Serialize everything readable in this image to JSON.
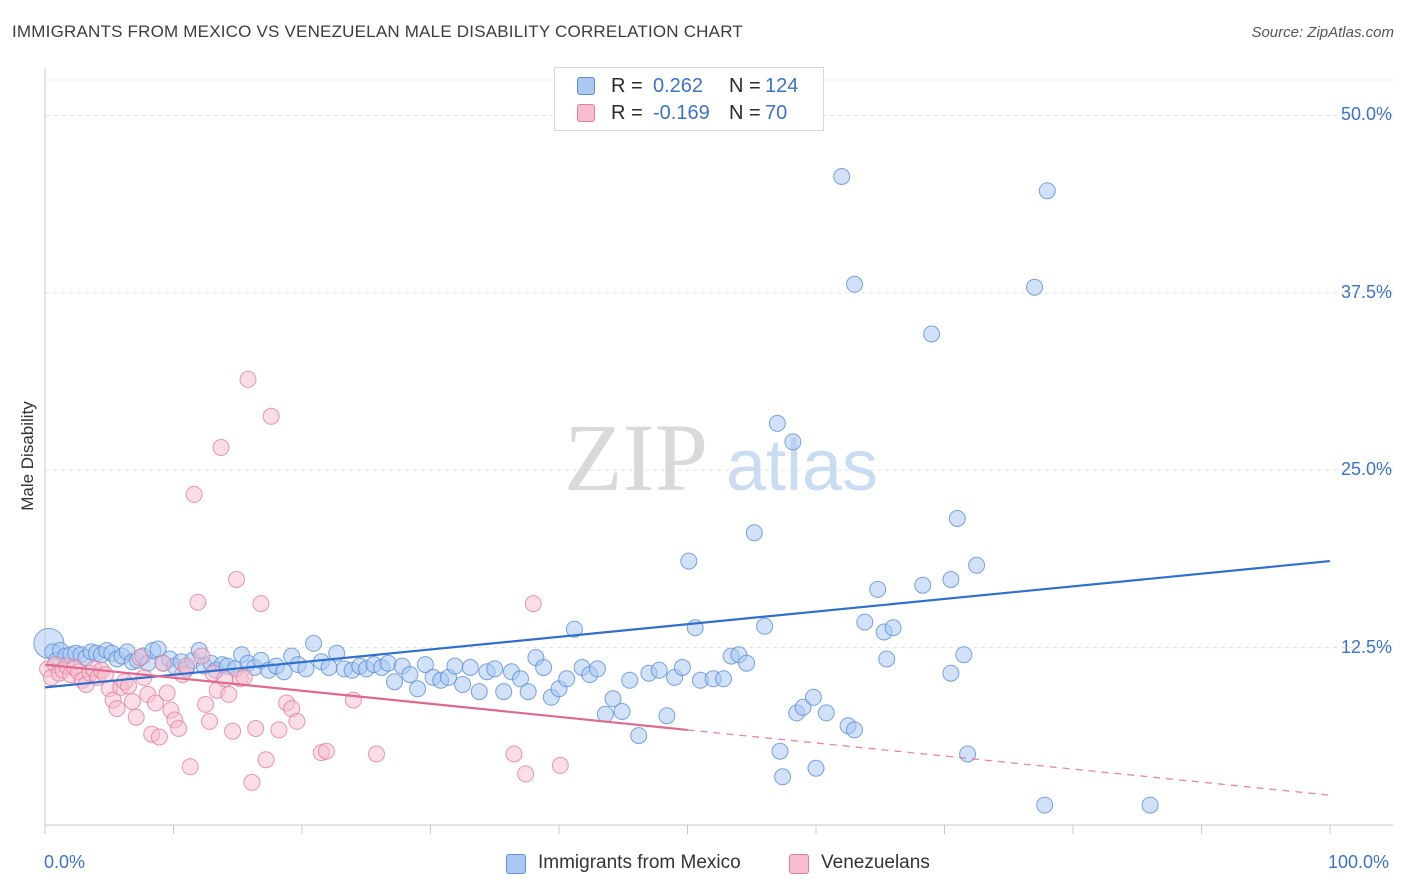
{
  "title": "IMMIGRANTS FROM MEXICO VS VENEZUELAN MALE DISABILITY CORRELATION CHART",
  "source": "Source: ZipAtlas.com",
  "watermark": {
    "zip": "ZIP",
    "atlas": "atlas"
  },
  "legend": {
    "rows": [
      {
        "r_label": "R =",
        "r_value": "0.262",
        "n_label": "N =",
        "n_value": "124",
        "color": "#a9c8f2",
        "stroke": "#5b8fd6"
      },
      {
        "r_label": "R =",
        "r_value": "-0.169",
        "n_label": "N =",
        "n_value": "70",
        "color": "#f7bccd",
        "stroke": "#e07f9d"
      }
    ]
  },
  "bottom_legend": [
    {
      "label": "Immigrants from Mexico",
      "color": "#a9c8f2",
      "stroke": "#5b8fd6"
    },
    {
      "label": "Venezuelans",
      "color": "#f7bccd",
      "stroke": "#e07f9d"
    }
  ],
  "chart_data": {
    "type": "scatter",
    "title": "IMMIGRANTS FROM MEXICO VS VENEZUELAN MALE DISABILITY CORRELATION CHART",
    "xlabel": "",
    "ylabel": "Male Disability",
    "xlim": [
      0,
      100
    ],
    "ylim": [
      0,
      52.5
    ],
    "x_ticks": [
      "0.0%",
      "100.0%"
    ],
    "y_ticks": [
      {
        "value": 12.5,
        "label": "12.5%"
      },
      {
        "value": 25.0,
        "label": "25.0%"
      },
      {
        "value": 37.5,
        "label": "37.5%"
      },
      {
        "value": 50.0,
        "label": "50.0%"
      }
    ],
    "grid": true,
    "series": [
      {
        "name": "Immigrants from Mexico",
        "color": "#a9c8f2",
        "stroke": "#5b8fd6",
        "trend": {
          "x0": 0,
          "y0": 9.7,
          "x1": 100,
          "y1": 18.6,
          "color": "#2f6fd0",
          "dashed_from": null
        },
        "points": [
          [
            0.3,
            12.8
          ],
          [
            0.6,
            12.2
          ],
          [
            0.9,
            11.6
          ],
          [
            1.2,
            12.3
          ],
          [
            1.6,
            11.9
          ],
          [
            2.0,
            12.0
          ],
          [
            2.4,
            12.1
          ],
          [
            2.8,
            12.0
          ],
          [
            3.2,
            11.8
          ],
          [
            3.6,
            12.2
          ],
          [
            4.0,
            12.1
          ],
          [
            4.4,
            12.0
          ],
          [
            4.8,
            12.3
          ],
          [
            5.2,
            12.1
          ],
          [
            5.6,
            11.7
          ],
          [
            6.0,
            11.9
          ],
          [
            6.4,
            12.2
          ],
          [
            6.8,
            11.5
          ],
          [
            7.2,
            11.6
          ],
          [
            7.6,
            11.9
          ],
          [
            8.0,
            11.4
          ],
          [
            8.4,
            12.3
          ],
          [
            8.8,
            12.4
          ],
          [
            9.2,
            11.4
          ],
          [
            9.7,
            11.7
          ],
          [
            10.1,
            11.2
          ],
          [
            10.6,
            11.5
          ],
          [
            11.0,
            11.0
          ],
          [
            11.5,
            11.6
          ],
          [
            12.0,
            12.3
          ],
          [
            12.4,
            11.2
          ],
          [
            12.9,
            11.4
          ],
          [
            13.3,
            10.9
          ],
          [
            13.8,
            11.3
          ],
          [
            14.2,
            11.2
          ],
          [
            14.8,
            11.0
          ],
          [
            15.3,
            12.0
          ],
          [
            15.8,
            11.4
          ],
          [
            16.3,
            11.1
          ],
          [
            16.8,
            11.6
          ],
          [
            17.4,
            10.9
          ],
          [
            18.0,
            11.2
          ],
          [
            18.6,
            10.8
          ],
          [
            19.2,
            11.9
          ],
          [
            19.7,
            11.3
          ],
          [
            20.3,
            11.0
          ],
          [
            20.9,
            12.8
          ],
          [
            21.5,
            11.5
          ],
          [
            22.1,
            11.1
          ],
          [
            22.7,
            12.1
          ],
          [
            23.3,
            11.0
          ],
          [
            23.9,
            10.9
          ],
          [
            24.5,
            11.2
          ],
          [
            25.0,
            11.0
          ],
          [
            25.6,
            11.3
          ],
          [
            26.2,
            11.1
          ],
          [
            26.7,
            11.4
          ],
          [
            27.2,
            10.1
          ],
          [
            27.8,
            11.2
          ],
          [
            28.4,
            10.6
          ],
          [
            29.0,
            9.6
          ],
          [
            29.6,
            11.3
          ],
          [
            30.2,
            10.4
          ],
          [
            30.8,
            10.2
          ],
          [
            31.4,
            10.4
          ],
          [
            31.9,
            11.2
          ],
          [
            32.5,
            9.9
          ],
          [
            33.1,
            11.1
          ],
          [
            33.8,
            9.4
          ],
          [
            34.4,
            10.8
          ],
          [
            35.0,
            11.0
          ],
          [
            35.7,
            9.4
          ],
          [
            36.3,
            10.8
          ],
          [
            37.0,
            10.3
          ],
          [
            37.6,
            9.4
          ],
          [
            38.2,
            11.8
          ],
          [
            38.8,
            11.1
          ],
          [
            39.4,
            9.0
          ],
          [
            40.0,
            9.6
          ],
          [
            40.6,
            10.3
          ],
          [
            41.2,
            13.8
          ],
          [
            41.8,
            11.1
          ],
          [
            42.4,
            10.6
          ],
          [
            43.0,
            11.0
          ],
          [
            43.6,
            7.8
          ],
          [
            44.2,
            8.9
          ],
          [
            44.9,
            8.0
          ],
          [
            45.5,
            10.2
          ],
          [
            46.2,
            6.3
          ],
          [
            47.0,
            10.7
          ],
          [
            47.8,
            10.9
          ],
          [
            48.4,
            7.7
          ],
          [
            49.0,
            10.4
          ],
          [
            49.6,
            11.1
          ],
          [
            50.1,
            18.6
          ],
          [
            50.6,
            13.9
          ],
          [
            51.0,
            10.2
          ],
          [
            52.0,
            10.3
          ],
          [
            52.8,
            10.3
          ],
          [
            53.4,
            11.9
          ],
          [
            54.0,
            12.0
          ],
          [
            54.6,
            11.4
          ],
          [
            55.2,
            20.6
          ],
          [
            56.0,
            14.0
          ],
          [
            57.2,
            5.2
          ],
          [
            57.4,
            3.4
          ],
          [
            58.5,
            7.9
          ],
          [
            59.0,
            8.3
          ],
          [
            59.8,
            9.0
          ],
          [
            60.0,
            4.0
          ],
          [
            60.8,
            7.9
          ],
          [
            62.5,
            7.0
          ],
          [
            63.0,
            6.7
          ],
          [
            63.8,
            14.3
          ],
          [
            64.8,
            16.6
          ],
          [
            65.3,
            13.6
          ],
          [
            66.0,
            13.9
          ],
          [
            68.3,
            16.9
          ],
          [
            70.5,
            17.3
          ],
          [
            71.0,
            21.6
          ],
          [
            72.5,
            18.3
          ],
          [
            62.0,
            45.7
          ],
          [
            57.0,
            28.3
          ],
          [
            58.2,
            27.0
          ],
          [
            63.0,
            38.1
          ],
          [
            69.0,
            34.6
          ],
          [
            77.0,
            37.9
          ],
          [
            70.5,
            10.7
          ],
          [
            78.0,
            44.7
          ],
          [
            71.5,
            12.0
          ],
          [
            77.8,
            1.4
          ],
          [
            86.0,
            1.4
          ],
          [
            71.8,
            5.0
          ],
          [
            65.5,
            11.7
          ]
        ]
      },
      {
        "name": "Venezuelans",
        "color": "#f7bccd",
        "stroke": "#e07f9d",
        "trend": {
          "x0": 0,
          "y0": 11.3,
          "x1": 100,
          "y1": 2.1,
          "color": "#e0688f",
          "dashed_from": 50
        },
        "points": [
          [
            0.2,
            11.0
          ],
          [
            0.5,
            10.4
          ],
          [
            0.8,
            11.3
          ],
          [
            1.1,
            10.7
          ],
          [
            1.4,
            10.9
          ],
          [
            1.7,
            11.2
          ],
          [
            2.0,
            10.6
          ],
          [
            2.3,
            11.1
          ],
          [
            2.6,
            10.8
          ],
          [
            2.9,
            10.2
          ],
          [
            3.2,
            9.9
          ],
          [
            3.5,
            10.7
          ],
          [
            3.8,
            11.0
          ],
          [
            4.1,
            10.4
          ],
          [
            4.4,
            10.9
          ],
          [
            4.7,
            10.6
          ],
          [
            5.0,
            9.6
          ],
          [
            5.3,
            8.8
          ],
          [
            5.6,
            8.2
          ],
          [
            5.9,
            9.7
          ],
          [
            6.2,
            10.1
          ],
          [
            6.5,
            9.8
          ],
          [
            6.8,
            8.7
          ],
          [
            7.1,
            7.6
          ],
          [
            7.4,
            11.8
          ],
          [
            7.7,
            10.4
          ],
          [
            8.0,
            9.2
          ],
          [
            8.3,
            6.4
          ],
          [
            8.6,
            8.6
          ],
          [
            8.9,
            6.2
          ],
          [
            9.2,
            11.4
          ],
          [
            9.5,
            9.3
          ],
          [
            9.8,
            8.1
          ],
          [
            10.1,
            7.4
          ],
          [
            10.4,
            6.8
          ],
          [
            10.7,
            10.6
          ],
          [
            11.0,
            11.2
          ],
          [
            11.3,
            4.1
          ],
          [
            11.6,
            23.3
          ],
          [
            11.9,
            15.7
          ],
          [
            12.2,
            11.9
          ],
          [
            12.5,
            8.5
          ],
          [
            12.8,
            7.3
          ],
          [
            13.1,
            10.7
          ],
          [
            13.4,
            9.5
          ],
          [
            13.7,
            26.6
          ],
          [
            14.0,
            10.3
          ],
          [
            14.3,
            9.2
          ],
          [
            14.6,
            6.6
          ],
          [
            14.9,
            17.3
          ],
          [
            15.2,
            10.3
          ],
          [
            15.5,
            10.4
          ],
          [
            15.8,
            31.4
          ],
          [
            16.1,
            3.0
          ],
          [
            16.4,
            6.8
          ],
          [
            16.8,
            15.6
          ],
          [
            17.2,
            4.6
          ],
          [
            17.6,
            28.8
          ],
          [
            18.2,
            6.7
          ],
          [
            18.8,
            8.6
          ],
          [
            19.2,
            8.2
          ],
          [
            19.6,
            7.3
          ],
          [
            21.5,
            5.1
          ],
          [
            21.9,
            5.2
          ],
          [
            24.0,
            8.8
          ],
          [
            25.8,
            5.0
          ],
          [
            36.5,
            5.0
          ],
          [
            37.4,
            3.6
          ],
          [
            38.0,
            15.6
          ],
          [
            40.1,
            4.2
          ]
        ]
      }
    ]
  }
}
